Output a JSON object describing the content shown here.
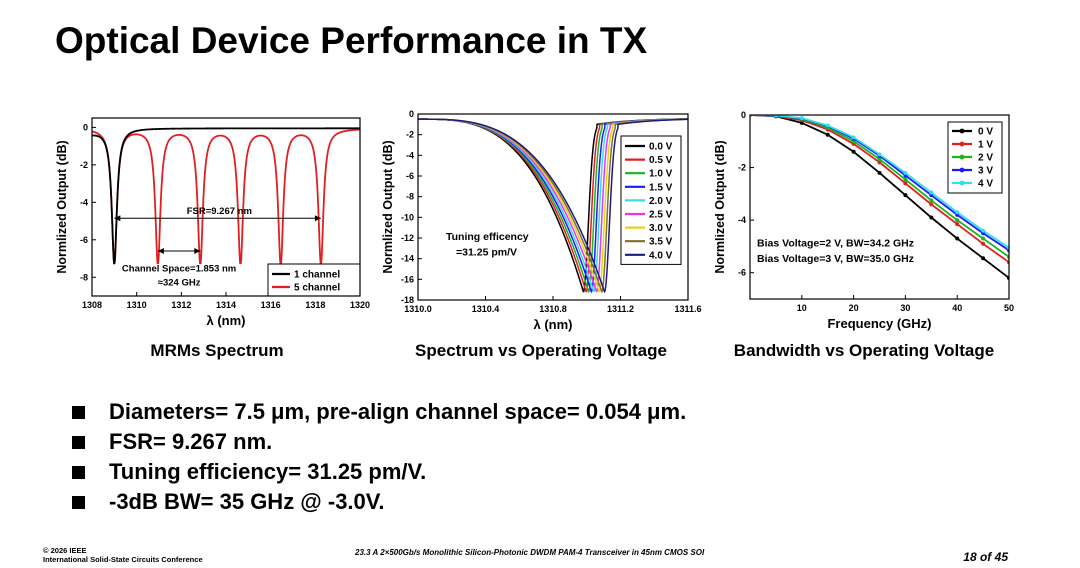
{
  "slide": {
    "title": "Optical Device Performance in TX",
    "captions": [
      "MRMs Spectrum",
      "Spectrum vs Operating Voltage",
      "Bandwidth vs Operating Voltage"
    ],
    "bullets": [
      "Diameters= 7.5 μm, pre-align channel space= 0.054 μm.",
      "FSR= 9.267 nm.",
      "Tuning efficiency= 31.25 pm/V.",
      "-3dB BW= 35 GHz @ -3.0V."
    ],
    "footer": {
      "copyright": "© 2026 IEEE",
      "conference": "International Solid-State Circuits Conference",
      "paper": "23.3 A 2×500Gb/s Monolithic Silicon-Photonic DWDM PAM-4 Transceiver in 45nm CMOS SOI",
      "page": "18 of 45"
    }
  },
  "chart_data": [
    {
      "type": "line",
      "title": "MRMs Spectrum",
      "xlabel": "λ (nm)",
      "ylabel": "Normlized Output (dB)",
      "xlim": [
        1308,
        1320
      ],
      "ylim": [
        -9,
        0.5
      ],
      "xticks": [
        1308,
        1310,
        1312,
        1314,
        1316,
        1318,
        1320
      ],
      "yticks": [
        0,
        -2,
        -4,
        -6,
        -8
      ],
      "legend_position": "bottom-right",
      "series": [
        {
          "name": "1 channel",
          "color": "#000000",
          "resonances": [
            1309.0
          ]
        },
        {
          "name": "5 channel",
          "color": "#e02020",
          "resonances": [
            1309.0,
            1310.95,
            1312.85,
            1314.65,
            1316.45,
            1318.25
          ]
        }
      ],
      "notch_depth_db": -7.2,
      "annotations": [
        {
          "text": "FSR=9.267 nm"
        },
        {
          "text": "Channel Space=1.853 nm"
        },
        {
          "text": "≈324 GHz"
        }
      ]
    },
    {
      "type": "line",
      "title": "Spectrum vs Operating Voltage",
      "xlabel": "λ (nm)",
      "ylabel": "Normlized Output (dB)",
      "xlim": [
        1310.0,
        1311.6
      ],
      "ylim": [
        -18,
        0
      ],
      "xticks": [
        1310.0,
        1310.4,
        1310.8,
        1311.2,
        1311.6
      ],
      "yticks": [
        0,
        -2,
        -4,
        -6,
        -8,
        -10,
        -12,
        -14,
        -16,
        -18
      ],
      "legend_position": "top-right",
      "series": [
        {
          "name": "0.0 V",
          "color": "#000000",
          "resonance": 1310.98
        },
        {
          "name": "0.5 V",
          "color": "#e02020",
          "resonance": 1310.996
        },
        {
          "name": "1.0 V",
          "color": "#1db31d",
          "resonance": 1311.011
        },
        {
          "name": "1.5 V",
          "color": "#1a1aff",
          "resonance": 1311.027
        },
        {
          "name": "2.0 V",
          "color": "#33ddee",
          "resonance": 1311.042
        },
        {
          "name": "2.5 V",
          "color": "#ee33ee",
          "resonance": 1311.058
        },
        {
          "name": "3.0 V",
          "color": "#e8d020",
          "resonance": 1311.074
        },
        {
          "name": "3.5 V",
          "color": "#807020",
          "resonance": 1311.089
        },
        {
          "name": "4.0 V",
          "color": "#1a1a80",
          "resonance": 1311.105
        }
      ],
      "notch_depth_db": -17.2,
      "annotations": [
        {
          "text": "Tuning efficency"
        },
        {
          "text": "=31.25 pm/V"
        }
      ]
    },
    {
      "type": "line",
      "title": "Bandwidth vs Operating Voltage",
      "xlabel": "Frequency (GHz)",
      "ylabel": "Normlized Output (dB)",
      "xlim": [
        0,
        50
      ],
      "ylim": [
        -7,
        0
      ],
      "xticks": [
        10,
        20,
        30,
        40,
        50
      ],
      "yticks": [
        0,
        -2,
        -4,
        -6
      ],
      "legend_position": "top-right",
      "series": [
        {
          "name": "0 V",
          "color": "#000000",
          "x": [
            0,
            5,
            10,
            15,
            20,
            25,
            30,
            35,
            40,
            45,
            50
          ],
          "values": [
            0,
            -0.05,
            -0.3,
            -0.75,
            -1.4,
            -2.2,
            -3.05,
            -3.9,
            -4.7,
            -5.45,
            -6.2
          ]
        },
        {
          "name": "1 V",
          "color": "#e02020",
          "x": [
            0,
            5,
            10,
            15,
            20,
            25,
            30,
            35,
            40,
            45,
            50
          ],
          "values": [
            0,
            -0.04,
            -0.2,
            -0.55,
            -1.1,
            -1.8,
            -2.6,
            -3.4,
            -4.15,
            -4.9,
            -5.6
          ]
        },
        {
          "name": "2 V",
          "color": "#1db31d",
          "x": [
            0,
            5,
            10,
            15,
            20,
            25,
            30,
            35,
            40,
            45,
            50
          ],
          "values": [
            0,
            -0.03,
            -0.15,
            -0.48,
            -1.0,
            -1.68,
            -2.45,
            -3.25,
            -4.0,
            -4.7,
            -5.4
          ]
        },
        {
          "name": "3 V",
          "color": "#1a1aff",
          "x": [
            0,
            5,
            10,
            15,
            20,
            25,
            30,
            35,
            40,
            45,
            50
          ],
          "values": [
            0,
            -0.03,
            -0.13,
            -0.42,
            -0.9,
            -1.55,
            -2.3,
            -3.05,
            -3.8,
            -4.5,
            -5.15
          ]
        },
        {
          "name": "4 V",
          "color": "#33ddee",
          "x": [
            0,
            5,
            10,
            15,
            20,
            25,
            30,
            35,
            40,
            45,
            50
          ],
          "values": [
            0,
            -0.02,
            -0.12,
            -0.4,
            -0.85,
            -1.5,
            -2.2,
            -2.95,
            -3.7,
            -4.4,
            -5.05
          ]
        }
      ],
      "annotations": [
        {
          "text": "Bias Voltage=2 V, BW=34.2 GHz"
        },
        {
          "text": "Bias Voltage=3 V, BW=35.0 GHz"
        }
      ]
    }
  ]
}
